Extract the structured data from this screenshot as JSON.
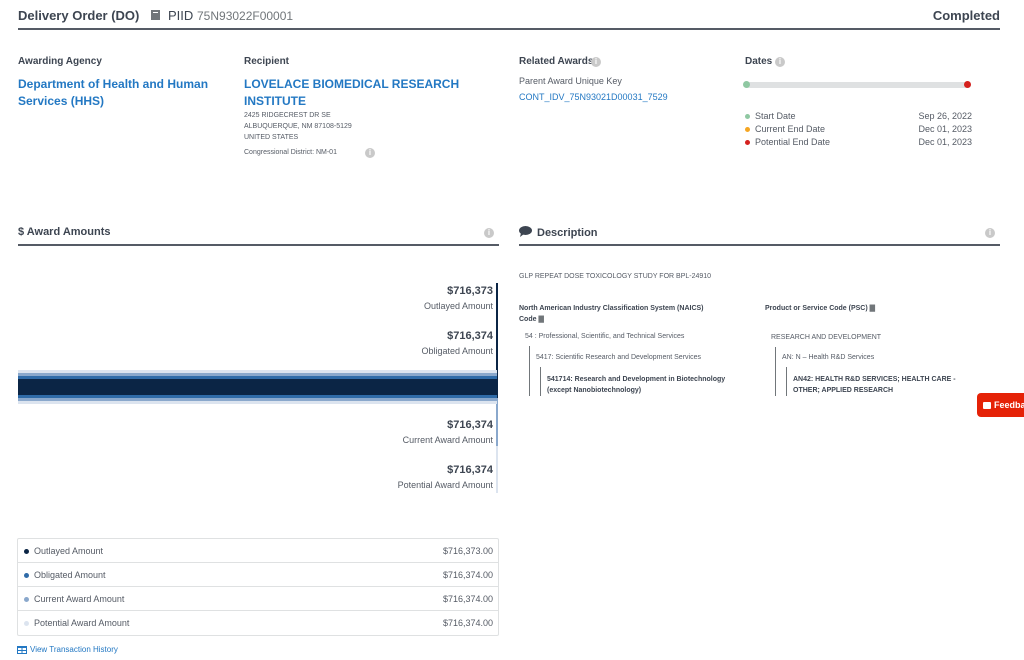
{
  "header": {
    "title": "Delivery Order (DO)",
    "piid_label": "PIID",
    "piid": "75N93022F00001",
    "status": "Completed"
  },
  "awarding_agency": {
    "label": "Awarding Agency",
    "name": "Department of Health and Human Services (HHS)"
  },
  "recipient": {
    "label": "Recipient",
    "name": "LOVELACE BIOMEDICAL RESEARCH INSTITUTE",
    "address1": "2425 RIDGECREST DR SE",
    "address2": "ALBUQUERQUE, NM 87108-5129",
    "address3": "UNITED STATES",
    "district": "Congressional District: NM-01"
  },
  "related_awards": {
    "label": "Related Awards",
    "parent_label": "Parent Award Unique Key",
    "parent_key": "CONT_IDV_75N93021D00031_7529"
  },
  "dates": {
    "label": "Dates",
    "rows": [
      {
        "label": "Start Date",
        "value": "Sep 26, 2022",
        "color": "#8fc8a2"
      },
      {
        "label": "Current End Date",
        "value": "Dec 01, 2023",
        "color": "#f5a623"
      },
      {
        "label": "Potential End Date",
        "value": "Dec 01, 2023",
        "color": "#d5211e"
      }
    ]
  },
  "award_amounts": {
    "title": "$ Award Amounts",
    "outlayed": {
      "value": "$716,373",
      "label": "Outlayed Amount"
    },
    "obligated": {
      "value": "$716,374",
      "label": "Obligated Amount"
    },
    "current": {
      "value": "$716,374",
      "label": "Current Award Amount"
    },
    "potential": {
      "value": "$716,374",
      "label": "Potential Award Amount"
    },
    "table": [
      {
        "label": "Outlayed Amount",
        "value": "$716,373.00",
        "color": "#0b2545"
      },
      {
        "label": "Obligated Amount",
        "value": "$716,374.00",
        "color": "#2f6ba8"
      },
      {
        "label": "Current Award Amount",
        "value": "$716,374.00",
        "color": "#8aa8cc"
      },
      {
        "label": "Potential Award Amount",
        "value": "$716,374.00",
        "color": "#dce4ef"
      }
    ],
    "history_link": "View Transaction History"
  },
  "description": {
    "title": "Description",
    "text": "GLP REPEAT DOSE TOXICOLOGY STUDY FOR BPL-24910",
    "naics_label": "North American Industry Classification System (NAICS) Code",
    "naics_l1": "54 : Professional, Scientific, and Technical Services",
    "naics_l2": "5417: Scientific Research and Development Services",
    "naics_l3": "541714: Research and Development in Biotechnology (except Nanobiotechnology)",
    "psc_label": "Product or Service Code (PSC)",
    "psc_l1": "RESEARCH AND DEVELOPMENT",
    "psc_l2": "AN: N – Health R&D Services",
    "psc_l3": "AN42: HEALTH R&D SERVICES; HEALTH CARE - OTHER; APPLIED RESEARCH"
  },
  "feedback": "Feedback"
}
